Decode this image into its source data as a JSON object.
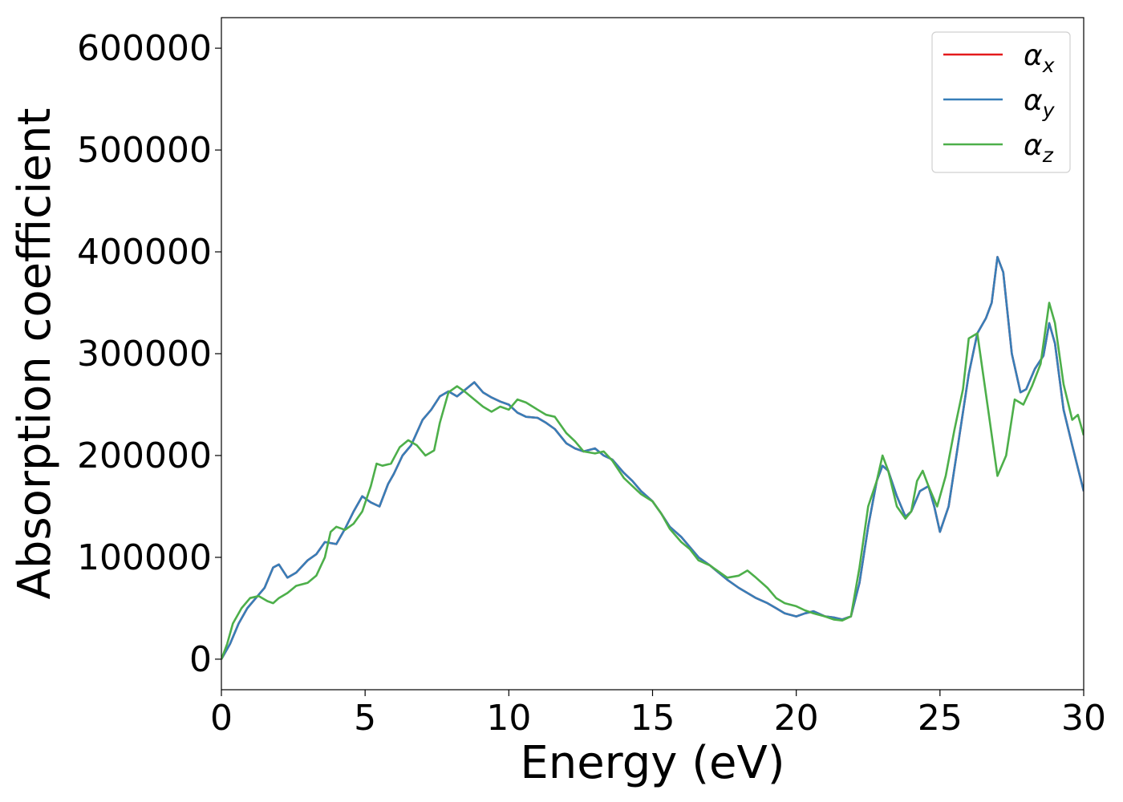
{
  "chart_data": {
    "type": "line",
    "title": "",
    "xlabel": "Energy (eV)",
    "ylabel": "Absorption coefficient",
    "xlim": [
      0,
      30
    ],
    "ylim": [
      -30000,
      630000
    ],
    "xticks": [
      0,
      5,
      10,
      15,
      20,
      25,
      30
    ],
    "xtick_labels": [
      "0",
      "5",
      "10",
      "15",
      "20",
      "25",
      "30"
    ],
    "yticks": [
      0,
      100000,
      200000,
      300000,
      400000,
      500000,
      600000
    ],
    "ytick_labels": [
      "0",
      "100000",
      "200000",
      "300000",
      "400000",
      "500000",
      "600000"
    ],
    "grid": false,
    "legend_position": "top-right",
    "series": [
      {
        "name": "α_x",
        "legend_main": "α",
        "legend_sub": "x",
        "color": "#e41a1c",
        "x": [
          0,
          0.3,
          0.6,
          0.9,
          1.2,
          1.5,
          1.8,
          2.0,
          2.3,
          2.6,
          3.0,
          3.3,
          3.6,
          4.0,
          4.3,
          4.6,
          4.9,
          5.2,
          5.5,
          5.8,
          6.0,
          6.3,
          6.6,
          7.0,
          7.3,
          7.6,
          7.9,
          8.2,
          8.5,
          8.8,
          9.1,
          9.4,
          9.7,
          10.0,
          10.3,
          10.6,
          11.0,
          11.3,
          11.6,
          12.0,
          12.3,
          12.6,
          13.0,
          13.3,
          13.6,
          14.0,
          14.3,
          14.6,
          15.0,
          15.3,
          15.6,
          16.0,
          16.3,
          16.6,
          17.0,
          17.3,
          17.6,
          18.0,
          18.3,
          18.6,
          19.0,
          19.3,
          19.6,
          20.0,
          20.3,
          20.6,
          21.0,
          21.3,
          21.6,
          21.9,
          22.2,
          22.5,
          22.8,
          23.0,
          23.2,
          23.5,
          23.8,
          24.0,
          24.3,
          24.6,
          24.8,
          25.0,
          25.3,
          25.6,
          26.0,
          26.3,
          26.6,
          26.8,
          27.0,
          27.2,
          27.5,
          27.8,
          28.0,
          28.3,
          28.6,
          28.8,
          29.0,
          29.3,
          29.6,
          30.0
        ],
        "y": [
          0,
          15000,
          35000,
          50000,
          60000,
          70000,
          90000,
          93000,
          80000,
          85000,
          97000,
          103000,
          115000,
          113000,
          128000,
          145000,
          160000,
          154000,
          150000,
          172000,
          182000,
          200000,
          210000,
          235000,
          245000,
          258000,
          263000,
          258000,
          265000,
          272000,
          262000,
          257000,
          253000,
          250000,
          242000,
          238000,
          237000,
          232000,
          226000,
          212000,
          207000,
          204000,
          207000,
          200000,
          196000,
          183000,
          175000,
          165000,
          155000,
          143000,
          130000,
          120000,
          110000,
          100000,
          92000,
          85000,
          78000,
          70000,
          65000,
          60000,
          55000,
          50000,
          45000,
          42000,
          45000,
          47000,
          42000,
          41000,
          39000,
          42000,
          75000,
          130000,
          175000,
          190000,
          185000,
          160000,
          140000,
          145000,
          165000,
          170000,
          150000,
          125000,
          150000,
          205000,
          280000,
          320000,
          335000,
          350000,
          395000,
          380000,
          300000,
          262000,
          265000,
          285000,
          298000,
          330000,
          310000,
          245000,
          210000,
          165000
        ]
      },
      {
        "name": "α_y",
        "legend_main": "α",
        "legend_sub": "y",
        "color": "#377eb8",
        "x": [
          0,
          0.3,
          0.6,
          0.9,
          1.2,
          1.5,
          1.8,
          2.0,
          2.3,
          2.6,
          3.0,
          3.3,
          3.6,
          4.0,
          4.3,
          4.6,
          4.9,
          5.2,
          5.5,
          5.8,
          6.0,
          6.3,
          6.6,
          7.0,
          7.3,
          7.6,
          7.9,
          8.2,
          8.5,
          8.8,
          9.1,
          9.4,
          9.7,
          10.0,
          10.3,
          10.6,
          11.0,
          11.3,
          11.6,
          12.0,
          12.3,
          12.6,
          13.0,
          13.3,
          13.6,
          14.0,
          14.3,
          14.6,
          15.0,
          15.3,
          15.6,
          16.0,
          16.3,
          16.6,
          17.0,
          17.3,
          17.6,
          18.0,
          18.3,
          18.6,
          19.0,
          19.3,
          19.6,
          20.0,
          20.3,
          20.6,
          21.0,
          21.3,
          21.6,
          21.9,
          22.2,
          22.5,
          22.8,
          23.0,
          23.2,
          23.5,
          23.8,
          24.0,
          24.3,
          24.6,
          24.8,
          25.0,
          25.3,
          25.6,
          26.0,
          26.3,
          26.6,
          26.8,
          27.0,
          27.2,
          27.5,
          27.8,
          28.0,
          28.3,
          28.6,
          28.8,
          29.0,
          29.3,
          29.6,
          30.0
        ],
        "y": [
          0,
          15000,
          35000,
          50000,
          60000,
          70000,
          90000,
          93000,
          80000,
          85000,
          97000,
          103000,
          115000,
          113000,
          128000,
          145000,
          160000,
          154000,
          150000,
          172000,
          182000,
          200000,
          210000,
          235000,
          245000,
          258000,
          263000,
          258000,
          265000,
          272000,
          262000,
          257000,
          253000,
          250000,
          242000,
          238000,
          237000,
          232000,
          226000,
          212000,
          207000,
          204000,
          207000,
          200000,
          196000,
          183000,
          175000,
          165000,
          155000,
          143000,
          130000,
          120000,
          110000,
          100000,
          92000,
          85000,
          78000,
          70000,
          65000,
          60000,
          55000,
          50000,
          45000,
          42000,
          45000,
          47000,
          42000,
          41000,
          39000,
          42000,
          75000,
          130000,
          175000,
          190000,
          185000,
          160000,
          140000,
          145000,
          165000,
          170000,
          150000,
          125000,
          150000,
          205000,
          280000,
          320000,
          335000,
          350000,
          395000,
          380000,
          300000,
          262000,
          265000,
          285000,
          298000,
          330000,
          310000,
          245000,
          210000,
          165000
        ]
      },
      {
        "name": "α_z",
        "legend_main": "α",
        "legend_sub": "z",
        "color": "#4daf4a",
        "x": [
          0,
          0.2,
          0.4,
          0.7,
          1.0,
          1.3,
          1.6,
          1.8,
          2.0,
          2.3,
          2.6,
          3.0,
          3.3,
          3.6,
          3.8,
          4.0,
          4.3,
          4.6,
          4.9,
          5.2,
          5.4,
          5.6,
          5.9,
          6.2,
          6.5,
          6.8,
          7.1,
          7.4,
          7.6,
          7.9,
          8.2,
          8.5,
          8.8,
          9.1,
          9.4,
          9.7,
          10.0,
          10.3,
          10.6,
          11.0,
          11.3,
          11.6,
          12.0,
          12.3,
          12.6,
          13.0,
          13.3,
          13.6,
          14.0,
          14.3,
          14.6,
          15.0,
          15.3,
          15.6,
          16.0,
          16.3,
          16.6,
          17.0,
          17.3,
          17.6,
          18.0,
          18.3,
          18.6,
          19.0,
          19.3,
          19.6,
          20.0,
          20.3,
          20.6,
          21.0,
          21.3,
          21.6,
          21.9,
          22.2,
          22.5,
          22.8,
          23.0,
          23.2,
          23.5,
          23.8,
          24.0,
          24.2,
          24.4,
          24.6,
          24.9,
          25.2,
          25.5,
          25.8,
          26.0,
          26.3,
          26.5,
          26.7,
          27.0,
          27.3,
          27.6,
          27.9,
          28.2,
          28.5,
          28.8,
          29.0,
          29.3,
          29.6,
          29.8,
          30.0
        ],
        "y": [
          0,
          15000,
          35000,
          50000,
          60000,
          62000,
          57000,
          55000,
          60000,
          65000,
          72000,
          75000,
          82000,
          100000,
          125000,
          130000,
          127000,
          133000,
          145000,
          170000,
          192000,
          190000,
          192000,
          208000,
          215000,
          210000,
          200000,
          205000,
          232000,
          262000,
          268000,
          262000,
          255000,
          248000,
          243000,
          248000,
          245000,
          255000,
          252000,
          245000,
          240000,
          238000,
          222000,
          214000,
          204000,
          202000,
          204000,
          195000,
          178000,
          170000,
          162000,
          155000,
          143000,
          128000,
          115000,
          108000,
          97000,
          92000,
          86000,
          80000,
          82000,
          87000,
          80000,
          70000,
          60000,
          55000,
          52000,
          48000,
          45000,
          42000,
          39000,
          38000,
          42000,
          90000,
          150000,
          175000,
          200000,
          185000,
          150000,
          138000,
          145000,
          175000,
          185000,
          170000,
          150000,
          180000,
          225000,
          265000,
          315000,
          320000,
          280000,
          240000,
          180000,
          200000,
          255000,
          250000,
          268000,
          290000,
          350000,
          330000,
          270000,
          235000,
          240000,
          220000
        ]
      }
    ]
  }
}
